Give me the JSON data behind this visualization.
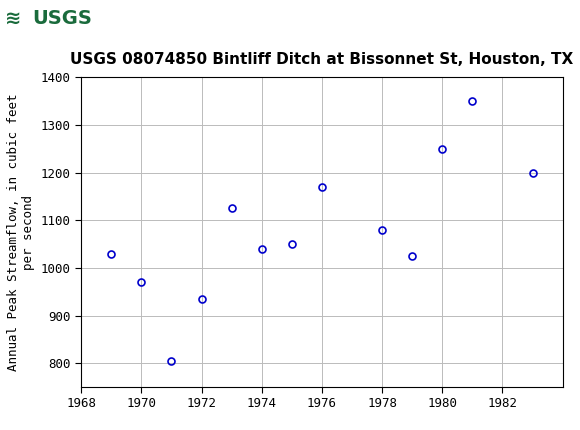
{
  "title": "USGS 08074850 Bintliff Ditch at Bissonnet St, Houston, TX",
  "ylabel": "Annual Peak Streamflow, in cubic feet\nper second",
  "years": [
    1969,
    1970,
    1971,
    1972,
    1973,
    1974,
    1975,
    1976,
    1978,
    1979,
    1980,
    1981,
    1983
  ],
  "values": [
    1030,
    970,
    805,
    935,
    1125,
    1040,
    1050,
    1170,
    1080,
    1025,
    1250,
    1350,
    1200
  ],
  "xlim": [
    1968,
    1984
  ],
  "ylim": [
    750,
    1400
  ],
  "xticks": [
    1968,
    1970,
    1972,
    1974,
    1976,
    1978,
    1980,
    1982
  ],
  "yticks": [
    800,
    900,
    1000,
    1100,
    1200,
    1300,
    1400
  ],
  "marker_color": "#0000cc",
  "marker_size": 5,
  "marker_lw": 1.2,
  "header_color": "#1a6b3c",
  "title_fontsize": 11,
  "axis_label_fontsize": 9,
  "tick_fontsize": 9,
  "grid_color": "#bbbbbb",
  "background_color": "#ffffff",
  "usgs_text_color": "#ffffff",
  "usgs_box_color": "#ffffff"
}
